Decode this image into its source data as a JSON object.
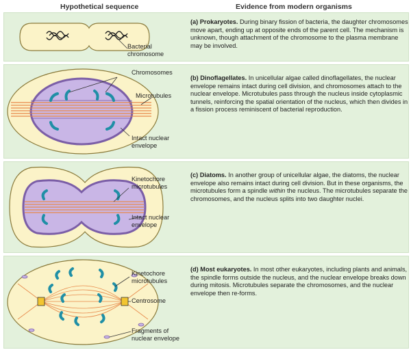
{
  "columns": {
    "left": "Hypothetical sequence",
    "right": "Evidence from modern organisms"
  },
  "panels": [
    {
      "letter": "(a)",
      "title": "Prokaryotes.",
      "text": " During binary fission of bacteria, the daughter chromosomes move apart, ending up at opposite ends of the parent cell. The mechanism is unknown, though attachment of the chromosome to the plasma membrane may be involved.",
      "labels": [
        "Bacterial chromosome"
      ]
    },
    {
      "letter": "(b)",
      "title": "Dinoflagellates.",
      "text": " In unicellular algae called dinoflagellates, the nuclear envelope remains intact during cell division, and chromosomes attach to the nuclear envelope. Microtubules pass through the nucleus inside cytoplasmic tunnels, reinforcing the spatial orientation of the nucleus, which then divides in a fission process reminiscent of bacterial reproduction.",
      "labels": [
        "Chromosomes",
        "Microtubules",
        "Intact nuclear envelope"
      ]
    },
    {
      "letter": "(c)",
      "title": "Diatoms.",
      "text_before": " In another group of unicellular algae, the diatoms, the nuclear envelope also remains intact during cell division. But in these organisms, the microtubules form a spindle ",
      "text_italic": "within",
      "text_after": " the nucleus. The microtubules separate the chromosomes, and the nucleus splits into two daughter nuclei.",
      "labels": [
        "Kinetochore microtubules",
        "Intact nuclear envelope"
      ]
    },
    {
      "letter": "(d)",
      "title": "Most eukaryotes.",
      "text": " In most other eukaryotes, including plants and animals, the spindle forms outside the nucleus, and the nuclear envelope breaks down during mitosis. Microtubules separate the chromosomes, and the nuclear envelope then re-forms.",
      "labels": [
        "Kinetochore microtubules",
        "Centrosome",
        "Fragments of nuclear envelope"
      ]
    }
  ],
  "colors": {
    "panel_bg": "#e3f1dc",
    "cell_fill": "#fbf3c8",
    "nucleus_fill": "#c9b6e6",
    "nucleus_edge": "#7b5ea7",
    "chromosome": "#1f8fa6",
    "microtubule": "#e8894a"
  }
}
